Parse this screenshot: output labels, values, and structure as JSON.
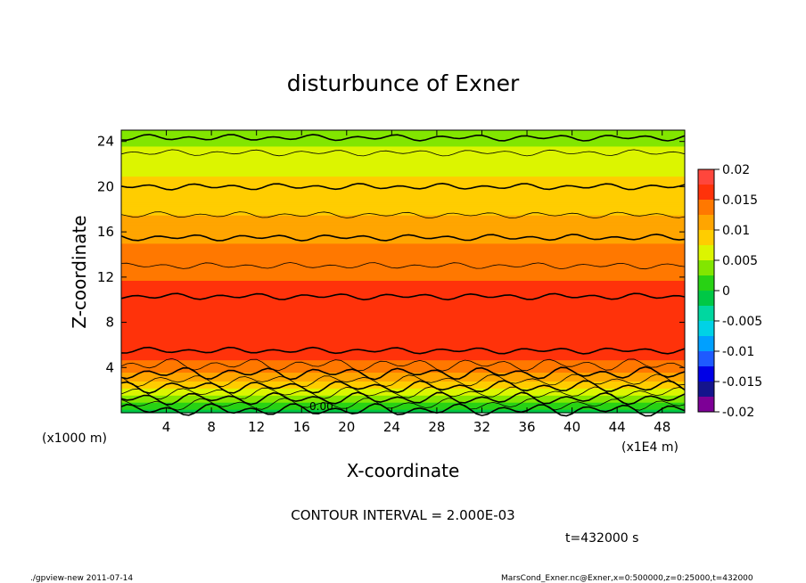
{
  "chart_data": {
    "type": "heatmap",
    "title": "disturbunce of Exner",
    "xlabel": "X-coordinate",
    "ylabel": "Z-coordinate",
    "x_unit_label": "(x1E4 m)",
    "y_unit_label": "(x1000 m)",
    "xlim": [
      0,
      50
    ],
    "ylim": [
      0,
      25
    ],
    "x_ticks": [
      4,
      8,
      12,
      16,
      20,
      24,
      28,
      32,
      36,
      40,
      44,
      48
    ],
    "y_ticks": [
      4,
      8,
      12,
      16,
      20,
      24
    ],
    "colorbar": {
      "ticks": [
        "0.02",
        "0.015",
        "0.01",
        "0.005",
        "0",
        "-0.005",
        "-0.01",
        "-0.015",
        "-0.02"
      ],
      "range": [
        -0.02,
        0.02
      ]
    },
    "profile": {
      "z": [
        0,
        1,
        2,
        3,
        4,
        5,
        6,
        7,
        8,
        9,
        10,
        11,
        12,
        13,
        14,
        15,
        16,
        17,
        18,
        19,
        20,
        21,
        22,
        23,
        24,
        25
      ],
      "value": [
        -0.001,
        0.003,
        0.007,
        0.0105,
        0.0135,
        0.0155,
        0.0165,
        0.017,
        0.017,
        0.0168,
        0.0162,
        0.0155,
        0.0148,
        0.014,
        0.0133,
        0.0125,
        0.0115,
        0.0105,
        0.0095,
        0.0088,
        0.008,
        0.0075,
        0.007,
        0.006,
        0.0045,
        0.003
      ]
    },
    "contour_interval_text": "CONTOUR INTERVAL = 2.000E-03",
    "zero_contour_label": "0.00",
    "time_label": "t=432000 s"
  },
  "footer": {
    "left": "./gpview-new   2011-07-14",
    "right": "MarsCond_Exner.nc@Exner,x=0:500000,z=0:25000,t=432000"
  }
}
